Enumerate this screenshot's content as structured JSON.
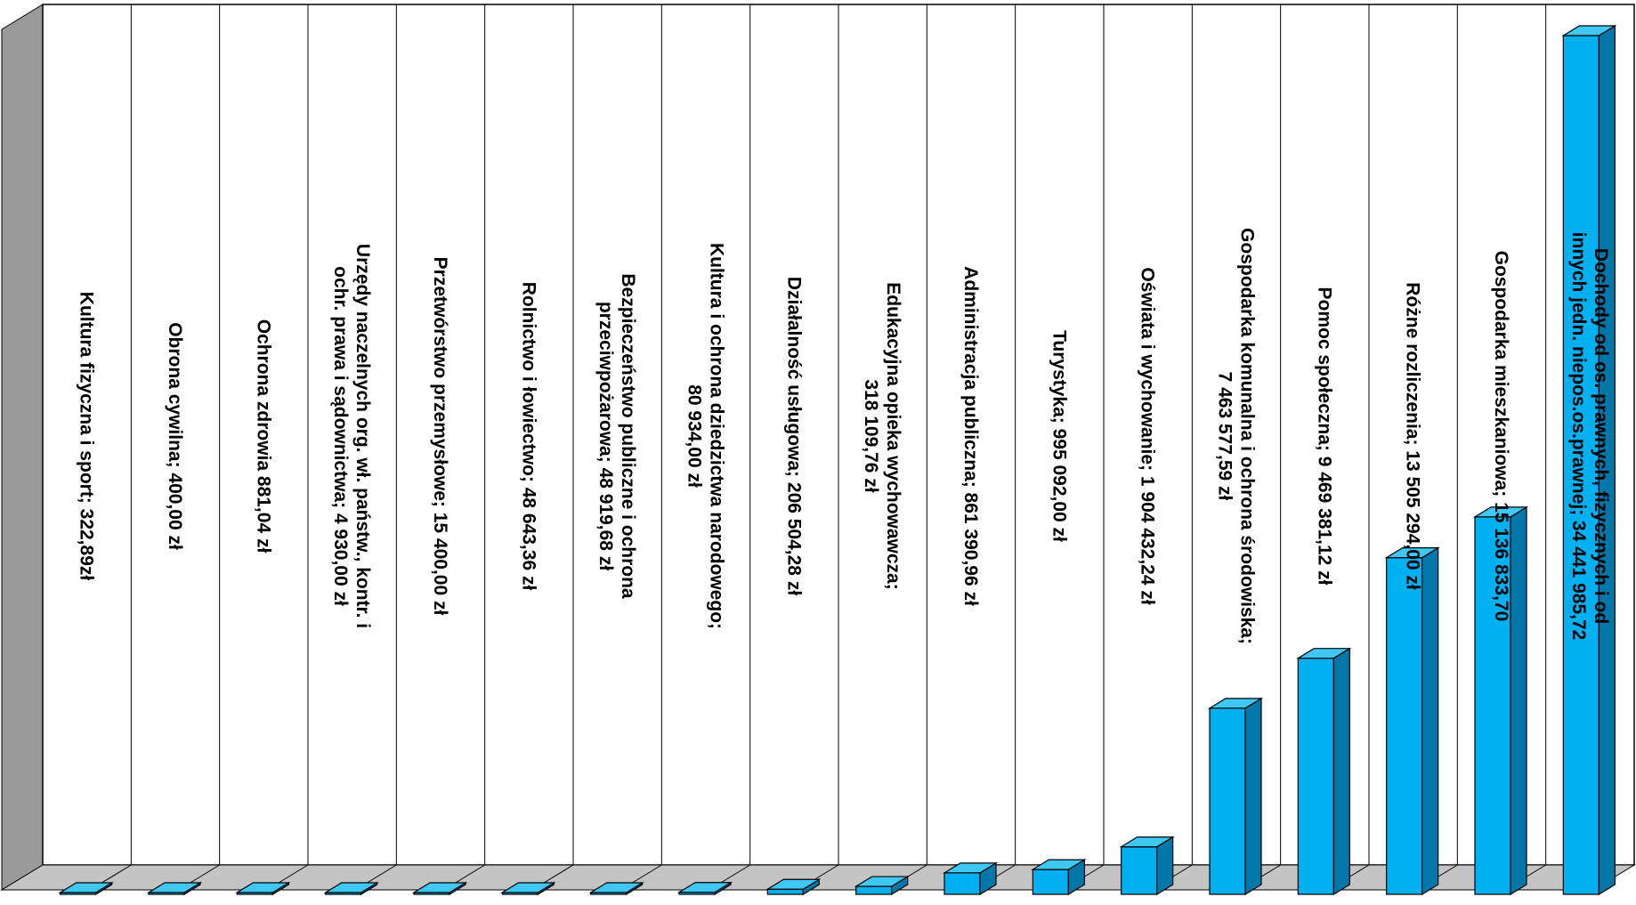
{
  "chart_data": {
    "type": "bar",
    "orientation": "vertical-3d",
    "grid": "vertical-lines",
    "legend": "none",
    "title": "",
    "xlabel": "",
    "ylabel": "",
    "colors": {
      "bar_front": "#00b0f0",
      "bar_top": "#3fc8f4",
      "bar_side": "#0077a8",
      "bar_edge": "#000000",
      "wall": "#ffffff",
      "wall_side": "#9a9a9a",
      "floor": "#c4c4c4"
    },
    "ylim": [
      0,
      34441985.72
    ],
    "categories": [
      "Kultura fizyczna i sport",
      "Obrona cywilna",
      "Ochrona zdrowia",
      "Urzędy naczelnych org. wł. państw., kontr. i ochr. prawa i sądownictwa",
      "Przetwórstwo przemysłowe",
      "Rolnictwo i łowiectwo",
      "Bezpieczeństwo publiczne i ochrona przeciwpożarowa",
      "Kultura i ochrona dziedzictwa narodowego",
      "Działalność usługowa",
      "Edukacyjna opieka wychowawcza",
      "Administracja publiczna",
      "Turystyka",
      "Oświata i wychowanie",
      "Gospodarka komunalna i ochrona środowiska",
      "Pomoc społeczna",
      "Różne rozliczenia",
      "Gospodarka mieszkaniowa",
      "Dochody od os. prawnych, fizycznych i od innych jedn. niepos.os.prawnej"
    ],
    "values": [
      322.89,
      400.0,
      881.04,
      4930.0,
      15400.0,
      48643.36,
      48919.68,
      80934.0,
      206504.28,
      318109.76,
      861390.96,
      995092.0,
      1904432.24,
      7463577.59,
      9469381.12,
      13505294.0,
      15136833.7,
      34441985.72
    ],
    "data_labels": [
      [
        "Kultura fizyczna i sport; 322,89zł"
      ],
      [
        "Obrona cywilna; 400,00 zł"
      ],
      [
        "Ochrona zdrowia 881,04 zł"
      ],
      [
        "Urzędy naczelnych org. wł. państw., kontr. i",
        "ochr. prawa i sądownictwa; 4 930,00 zł"
      ],
      [
        "Przetwórstwo przemysłowe; 15 400,00 zł"
      ],
      [
        "Rolnictwo i łowiectwo; 48 643,36 zł"
      ],
      [
        "Bezpieczeństwo publiczne i ochrona",
        "przeciwpożarowa; 48 919,68 zł"
      ],
      [
        "Kultura i ochrona dziedzictwa narodowego;",
        "80 934,00 zł"
      ],
      [
        "Działalność usługowa; 206 504,28 zł"
      ],
      [
        "Edukacyjna opieka wychowawcza;",
        "318 109,76 zł"
      ],
      [
        "Administracja publiczna;   861 390,96 zł"
      ],
      [
        "Turystyka; 995 092,00 zł"
      ],
      [
        "Oświata i wychowanie;  1 904 432,24 zł"
      ],
      [
        "Gospodarka komunalna i ochrona środowiska;",
        "7 463 577,59 zł"
      ],
      [
        "Pomoc społeczna; 9 469 381,12 zł"
      ],
      [
        "Różne rozliczenia; 13 505 294,00 zł"
      ],
      [
        "Gospodarka mieszkaniowa; 15 136 833,70"
      ],
      [
        "Dochody od os. prawnych, fizycznych i od",
        "innych jedn. niepos.os.prawnej; 34 441 985,72"
      ]
    ]
  }
}
